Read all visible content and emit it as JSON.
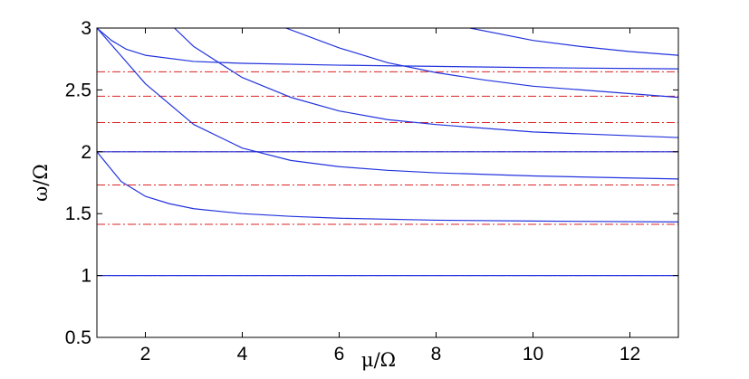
{
  "chart_data": {
    "type": "line",
    "title": "",
    "xlabel": "μ/Ω",
    "ylabel": "ω/Ω",
    "xlim": [
      1,
      13
    ],
    "ylim": [
      0.5,
      3
    ],
    "x_ticks": [
      2,
      4,
      6,
      8,
      10,
      12
    ],
    "y_ticks": [
      0.5,
      1,
      1.5,
      2,
      2.5,
      3
    ],
    "x_tick_labels": [
      "2",
      "4",
      "6",
      "8",
      "10",
      "12"
    ],
    "y_tick_labels": [
      "0.5",
      "1",
      "1.5",
      "2",
      "2.5",
      "3"
    ],
    "grid": false,
    "legend": "none",
    "colors": {
      "curve": "#2233dd",
      "reference": "#dd2222"
    },
    "series": [
      {
        "style": "solid",
        "color": "#2233dd",
        "x": [
          1,
          13
        ],
        "y": [
          1.0,
          1.0
        ]
      },
      {
        "style": "solid",
        "color": "#2233dd",
        "x": [
          1,
          13
        ],
        "y": [
          2.0,
          2.0
        ]
      },
      {
        "style": "solid",
        "color": "#2233dd",
        "x": [
          1,
          1.5,
          2,
          2.5,
          3,
          4,
          5,
          6,
          8,
          10,
          13
        ],
        "y": [
          2.0,
          1.76,
          1.64,
          1.58,
          1.54,
          1.5,
          1.478,
          1.463,
          1.447,
          1.44,
          1.433
        ]
      },
      {
        "style": "solid",
        "color": "#2233dd",
        "x": [
          1,
          2,
          3,
          4,
          5,
          6,
          7,
          8,
          10,
          13
        ],
        "y": [
          3.0,
          2.55,
          2.22,
          2.03,
          1.93,
          1.88,
          1.85,
          1.83,
          1.805,
          1.78
        ]
      },
      {
        "style": "solid",
        "color": "#2233dd",
        "x": [
          1,
          1.3,
          1.6,
          2,
          3,
          4,
          6,
          8,
          10,
          13
        ],
        "y": [
          3.0,
          2.9,
          2.83,
          2.78,
          2.73,
          2.715,
          2.7,
          2.69,
          2.68,
          2.67
        ]
      },
      {
        "style": "solid",
        "color": "#2233dd",
        "x": [
          2.6,
          3,
          4,
          5,
          6,
          7,
          8,
          10,
          13
        ],
        "y": [
          3.0,
          2.85,
          2.6,
          2.44,
          2.33,
          2.26,
          2.22,
          2.16,
          2.115
        ]
      },
      {
        "style": "solid",
        "color": "#2233dd",
        "x": [
          4.9,
          6,
          7,
          8,
          9,
          10,
          11,
          13
        ],
        "y": [
          3.0,
          2.84,
          2.72,
          2.64,
          2.58,
          2.53,
          2.5,
          2.44
        ]
      },
      {
        "style": "solid",
        "color": "#2233dd",
        "x": [
          8.7,
          10,
          11,
          12,
          13
        ],
        "y": [
          3.0,
          2.9,
          2.85,
          2.81,
          2.78
        ]
      },
      {
        "style": "dashdot",
        "color": "#dd2222",
        "x": [
          1,
          13
        ],
        "y": [
          1.414,
          1.414
        ]
      },
      {
        "style": "dashdot",
        "color": "#dd2222",
        "x": [
          1,
          13
        ],
        "y": [
          1.732,
          1.732
        ]
      },
      {
        "style": "dashdot",
        "color": "#dd2222",
        "x": [
          1,
          13
        ],
        "y": [
          2.236,
          2.236
        ]
      },
      {
        "style": "dashdot",
        "color": "#dd2222",
        "x": [
          1,
          13
        ],
        "y": [
          2.449,
          2.449
        ]
      },
      {
        "style": "dashdot",
        "color": "#dd2222",
        "x": [
          1,
          13
        ],
        "y": [
          2.646,
          2.646
        ]
      },
      {
        "style": "dashdot",
        "color": "#dd2222",
        "x": [
          1,
          13
        ],
        "y": [
          1.0,
          1.0
        ]
      },
      {
        "style": "dashdot",
        "color": "#dd2222",
        "x": [
          1,
          13
        ],
        "y": [
          2.0,
          2.0
        ]
      }
    ]
  }
}
